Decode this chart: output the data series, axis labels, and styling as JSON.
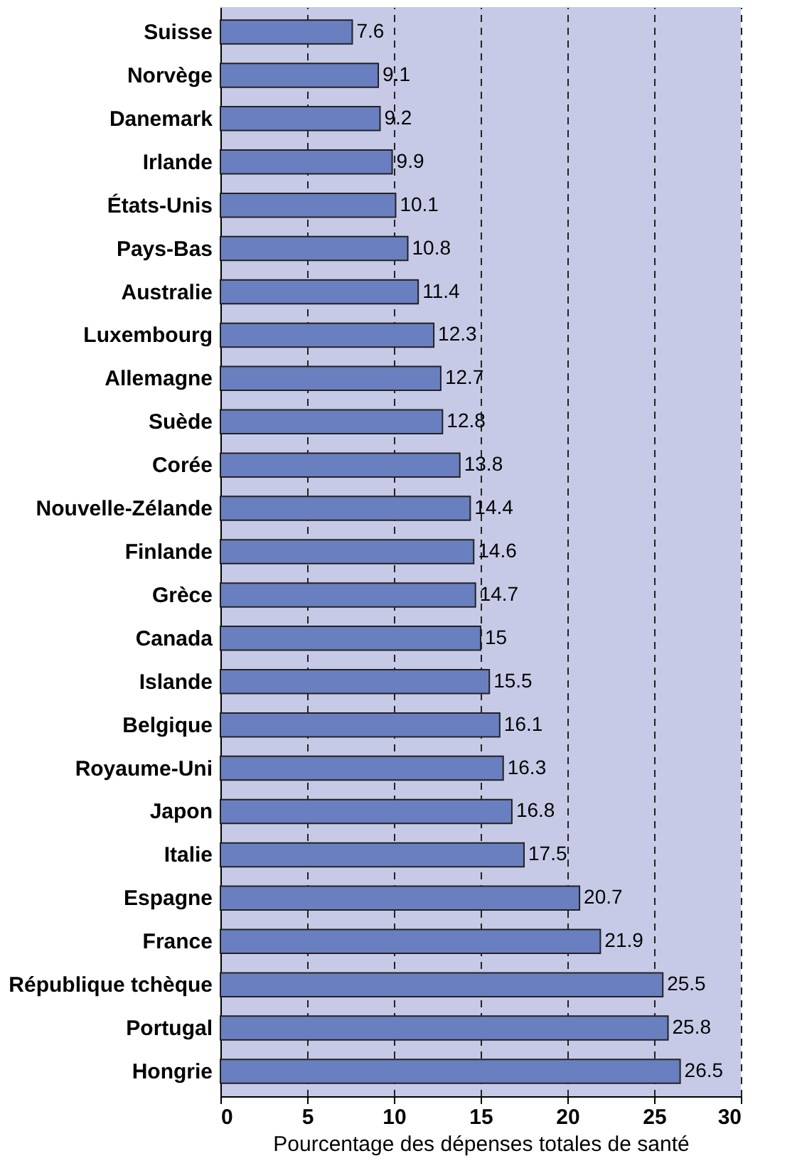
{
  "chart_data": {
    "type": "bar",
    "orientation": "horizontal",
    "xlabel": "Pourcentage des dépenses totales de santé",
    "categories": [
      "Suisse",
      "Norvège",
      "Danemark",
      "Irlande",
      "États-Unis",
      "Pays-Bas",
      "Australie",
      "Luxembourg",
      "Allemagne",
      "Suède",
      "Corée",
      "Nouvelle-Zélande",
      "Finlande",
      "Grèce",
      "Canada",
      "Islande",
      "Belgique",
      "Royaume-Uni",
      "Japon",
      "Italie",
      "Espagne",
      "France",
      "République tchèque",
      "Portugal",
      "Hongrie"
    ],
    "values": [
      7.6,
      9.1,
      9.2,
      9.9,
      10.1,
      10.8,
      11.4,
      12.3,
      12.7,
      12.8,
      13.8,
      14.4,
      14.6,
      14.7,
      15,
      15.5,
      16.1,
      16.3,
      16.8,
      17.5,
      20.7,
      21.9,
      25.5,
      25.8,
      26.5
    ],
    "color": "#6a7fbf",
    "xlim": [
      0,
      30
    ],
    "xticks": [
      0,
      5,
      10,
      15,
      20,
      25,
      30
    ],
    "grid": "x",
    "data_labels": true
  }
}
